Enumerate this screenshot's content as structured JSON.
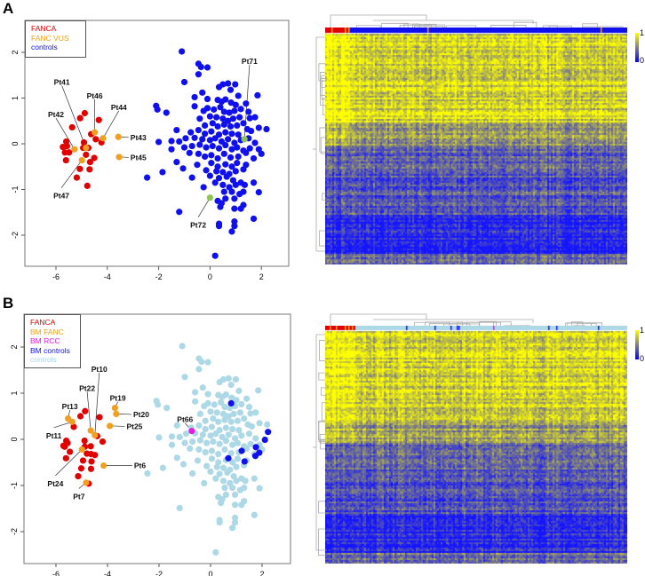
{
  "panels": {
    "a": "A",
    "b": "B"
  },
  "chart_data": [
    {
      "type": "scatter",
      "panel": "A",
      "xlim": [
        -7,
        3
      ],
      "ylim": [
        -2.6,
        2.6
      ],
      "xticks": [
        "-6",
        "-4",
        "-2",
        "0",
        "2"
      ],
      "xtick_values": [
        -6,
        -4,
        -2,
        0,
        2
      ],
      "yticks": [
        "-2",
        "-1",
        "0",
        "1",
        "2"
      ],
      "ytick_values": [
        -2,
        -1,
        0,
        1,
        2
      ],
      "legend_position": "top-left",
      "legend": [
        {
          "label": "FANCA",
          "color": "#e00000"
        },
        {
          "label": "FANC VUS",
          "color": "#f0a020"
        },
        {
          "label": "controls",
          "color": "#1010ee"
        }
      ],
      "series": [
        {
          "name": "FANCA",
          "color": "#e00000",
          "points": [
            [
              -4.88,
              0.67
            ],
            [
              -5.06,
              0.56
            ],
            [
              -5.37,
              0.36
            ],
            [
              -4.33,
              0.52
            ],
            [
              -4.63,
              0.21
            ],
            [
              -4.45,
              0.1
            ],
            [
              -5.6,
              0.05
            ],
            [
              -5.73,
              -0.07
            ],
            [
              -5.57,
              -0.05
            ],
            [
              -5.65,
              -0.19
            ],
            [
              -5.49,
              -0.19
            ],
            [
              -4.91,
              0.03
            ],
            [
              -4.94,
              -0.09
            ],
            [
              -4.74,
              -0.09
            ],
            [
              -4.83,
              -0.24
            ],
            [
              -4.51,
              -0.31
            ],
            [
              -5.61,
              -0.36
            ],
            [
              -4.67,
              -0.4
            ],
            [
              -5.07,
              -0.55
            ],
            [
              -4.69,
              -0.56
            ],
            [
              -5.19,
              -0.74
            ],
            [
              -4.78,
              -0.92
            ],
            [
              -4.23,
              0.03
            ]
          ]
        },
        {
          "name": "controls",
          "color": "#1010ee",
          "points": "controls"
        },
        {
          "name": "FANC VUS",
          "color": "#f0a020",
          "points": [
            [
              -4.49,
              0.25
            ],
            [
              -4.17,
              0.12
            ],
            [
              -3.57,
              0.15
            ],
            [
              -3.54,
              -0.29
            ],
            [
              -5.28,
              -0.12
            ],
            [
              -4.83,
              -0.09
            ],
            [
              -4.99,
              -0.36
            ]
          ]
        },
        {
          "name": "highlighted controls",
          "color": "#8cc850",
          "points": [
            [
              1.34,
              0.1
            ],
            [
              0.0,
              -1.18
            ]
          ]
        }
      ],
      "annotations": [
        {
          "text": "Pt41",
          "point": [
            -4.83,
            -0.09
          ],
          "label_at": [
            -5.77,
            1.35
          ]
        },
        {
          "text": "Pt46",
          "point": [
            -4.49,
            0.25
          ],
          "label_at": [
            -4.49,
            1.05
          ]
        },
        {
          "text": "Pt42",
          "point": [
            -5.28,
            -0.12
          ],
          "label_at": [
            -6.0,
            0.64
          ]
        },
        {
          "text": "Pt44",
          "point": [
            -4.17,
            0.12
          ],
          "label_at": [
            -3.55,
            0.8
          ]
        },
        {
          "text": "Pt43",
          "point": [
            -3.57,
            0.15
          ],
          "label_at": [
            -3.1,
            0.14
          ],
          "side": "right"
        },
        {
          "text": "Pt45",
          "point": [
            -3.54,
            -0.29
          ],
          "label_at": [
            -3.1,
            -0.3
          ],
          "side": "right"
        },
        {
          "text": "Pt47",
          "point": [
            -4.99,
            -0.36
          ],
          "label_at": [
            -5.79,
            -1.14
          ]
        },
        {
          "text": "Pt71",
          "point": [
            1.34,
            0.1
          ],
          "label_at": [
            1.54,
            1.81
          ]
        },
        {
          "text": "Pt72",
          "point": [
            0.0,
            -1.18
          ],
          "label_at": [
            -0.46,
            -1.78
          ]
        }
      ]
    },
    {
      "type": "scatter",
      "panel": "B",
      "xlim": [
        -7,
        3
      ],
      "ylim": [
        -2.6,
        2.6
      ],
      "xticks": [
        "-6",
        "-4",
        "-2",
        "0",
        "2"
      ],
      "xtick_values": [
        -6,
        -4,
        -2,
        0,
        2
      ],
      "yticks": [
        "-2",
        "-1",
        "0",
        "1",
        "2"
      ],
      "ytick_values": [
        -2,
        -1,
        0,
        1,
        2
      ],
      "legend_position": "top-left",
      "legend": [
        {
          "label": "FANCA",
          "color": "#e00000"
        },
        {
          "label": "BM FANC",
          "color": "#f0a020"
        },
        {
          "label": "BM RCC",
          "color": "#e020e0"
        },
        {
          "label": "BM controls",
          "color": "#1010ee"
        },
        {
          "label": "controls",
          "color": "#a8d4e4"
        }
      ],
      "series": [
        {
          "name": "controls",
          "color": "#add8e6",
          "points": "controls"
        },
        {
          "name": "FANCA",
          "color": "#e00000",
          "points": [
            [
              -4.87,
              0.61
            ],
            [
              -5.05,
              0.5
            ],
            [
              -4.31,
              0.48
            ],
            [
              -5.31,
              0.27
            ],
            [
              -4.4,
              0.07
            ],
            [
              -5.6,
              -0.03
            ],
            [
              -5.55,
              -0.08
            ],
            [
              -4.89,
              -0.03
            ],
            [
              -5.71,
              -0.14
            ],
            [
              -5.66,
              -0.16
            ],
            [
              -4.88,
              -0.16
            ],
            [
              -4.65,
              -0.15
            ],
            [
              -5.46,
              -0.27
            ],
            [
              -4.8,
              -0.31
            ],
            [
              -4.64,
              -0.32
            ],
            [
              -4.49,
              -0.34
            ],
            [
              -5.61,
              -0.41
            ],
            [
              -4.95,
              -0.46
            ],
            [
              -4.62,
              -0.48
            ],
            [
              -4.19,
              -0.05
            ],
            [
              -5.02,
              -0.63
            ],
            [
              -4.64,
              -0.64
            ],
            [
              -5.14,
              -0.8
            ],
            [
              -4.73,
              -0.96
            ]
          ]
        },
        {
          "name": "BM FANC",
          "color": "#f0a020",
          "points": [
            [
              -5.53,
              0.45
            ],
            [
              -5.37,
              0.38
            ],
            [
              -4.65,
              0.19
            ],
            [
              -4.49,
              0.09
            ],
            [
              -3.71,
              0.68
            ],
            [
              -3.66,
              0.55
            ],
            [
              -3.91,
              0.29
            ],
            [
              -4.15,
              -0.57
            ],
            [
              -4.99,
              -0.22
            ],
            [
              -4.83,
              -0.94
            ]
          ]
        },
        {
          "name": "BM RCC",
          "color": "#e020e0",
          "points": [
            [
              -0.73,
              0.18
            ]
          ]
        },
        {
          "name": "BM controls",
          "color": "#1010ee",
          "points": [
            [
              0.8,
              0.78
            ],
            [
              2.23,
              0.16
            ],
            [
              2.11,
              -0.01
            ],
            [
              1.76,
              -0.17
            ],
            [
              1.21,
              -0.25
            ],
            [
              1.89,
              -0.29
            ],
            [
              1.74,
              -0.36
            ],
            [
              0.69,
              -0.41
            ],
            [
              1.32,
              -0.48
            ]
          ]
        }
      ],
      "annotations": [
        {
          "text": "Pt10",
          "point": [
            -4.49,
            0.09
          ],
          "label_at": [
            -4.32,
            1.52
          ]
        },
        {
          "text": "Pt22",
          "point": [
            -4.65,
            0.19
          ],
          "label_at": [
            -4.79,
            1.11
          ]
        },
        {
          "text": "Pt19",
          "point": [
            -3.71,
            0.68
          ],
          "label_at": [
            -3.6,
            0.89
          ]
        },
        {
          "text": "Pt13",
          "point": [
            -5.53,
            0.45
          ],
          "label_at": [
            -5.46,
            0.71
          ]
        },
        {
          "text": "Pt20",
          "point": [
            -3.66,
            0.55
          ],
          "label_at": [
            -3.0,
            0.54
          ],
          "side": "right"
        },
        {
          "text": "Pt25",
          "point": [
            -3.91,
            0.29
          ],
          "label_at": [
            -3.26,
            0.28
          ],
          "side": "right"
        },
        {
          "text": "Pt11",
          "point": [
            -5.37,
            0.38
          ],
          "label_at": [
            -6.08,
            0.08
          ]
        },
        {
          "text": "Pt66",
          "point": [
            -0.73,
            0.18
          ],
          "label_at": [
            -0.99,
            0.43
          ]
        },
        {
          "text": "Pt6",
          "point": [
            -4.15,
            -0.57
          ],
          "label_at": [
            -2.97,
            -0.57
          ],
          "side": "right"
        },
        {
          "text": "Pt24",
          "point": [
            -4.99,
            -0.22
          ],
          "label_at": [
            -6.02,
            -0.96
          ]
        },
        {
          "text": "Pt7",
          "point": [
            -4.83,
            -0.94
          ],
          "label_at": [
            -5.11,
            -1.24
          ]
        }
      ]
    },
    {
      "type": "heatmap",
      "panel": "A",
      "colorbar": {
        "min_label": "0",
        "max_label": "1",
        "range": [
          0,
          1
        ],
        "low_color": "#0000ff",
        "mid_color": "#808080",
        "high_color": "#ffff00"
      },
      "column_annotation_colors": {
        "FANCA": "#e00000",
        "FANC VUS": "#f0a020",
        "controls": "#1010ee"
      }
    },
    {
      "type": "heatmap",
      "panel": "B",
      "colorbar": {
        "min_label": "0",
        "max_label": "1",
        "range": [
          0,
          1
        ],
        "low_color": "#0000ff",
        "mid_color": "#808080",
        "high_color": "#ffff00"
      },
      "column_annotation_colors": {
        "FANCA": "#e00000",
        "BM FANC": "#f0a020",
        "BM RCC": "#e020e0",
        "BM controls": "#1010ee",
        "controls": "#add8e6"
      }
    }
  ],
  "controls": [
    [
      -1.1,
      2.02
    ],
    [
      -0.45,
      1.75
    ],
    [
      -0.35,
      1.68
    ],
    [
      -0.1,
      1.67
    ],
    [
      -0.45,
      1.52
    ],
    [
      -1.0,
      1.35
    ],
    [
      0.5,
      1.3
    ],
    [
      0.7,
      1.32
    ],
    [
      0.35,
      1.24
    ],
    [
      0.8,
      1.18
    ],
    [
      0.98,
      1.3
    ],
    [
      1.1,
      1.05
    ],
    [
      1.85,
      1.06
    ],
    [
      -0.3,
      1.12
    ],
    [
      -0.6,
      1.02
    ],
    [
      -0.1,
      0.98
    ],
    [
      0.3,
      0.96
    ],
    [
      0.45,
      0.92
    ],
    [
      0.6,
      0.97
    ],
    [
      0.82,
      0.9
    ],
    [
      1.0,
      0.85
    ],
    [
      1.4,
      0.88
    ],
    [
      -2.1,
      0.83
    ],
    [
      -2.05,
      0.75
    ],
    [
      -1.7,
      0.68
    ],
    [
      -0.6,
      0.82
    ],
    [
      -0.25,
      0.72
    ],
    [
      -0.1,
      0.78
    ],
    [
      0.15,
      0.75
    ],
    [
      0.4,
      0.8
    ],
    [
      0.55,
      0.7
    ],
    [
      0.75,
      0.68
    ],
    [
      0.95,
      0.72
    ],
    [
      1.2,
      0.76
    ],
    [
      1.5,
      0.7
    ],
    [
      -0.4,
      0.55
    ],
    [
      0.0,
      0.6
    ],
    [
      0.25,
      0.58
    ],
    [
      0.5,
      0.55
    ],
    [
      0.7,
      0.5
    ],
    [
      0.9,
      0.55
    ],
    [
      1.15,
      0.58
    ],
    [
      1.55,
      0.56
    ],
    [
      1.75,
      0.58
    ],
    [
      -0.2,
      0.4
    ],
    [
      0.1,
      0.45
    ],
    [
      0.3,
      0.38
    ],
    [
      0.55,
      0.42
    ],
    [
      0.8,
      0.38
    ],
    [
      1.05,
      0.4
    ],
    [
      1.3,
      0.45
    ],
    [
      1.45,
      0.32
    ],
    [
      1.9,
      0.35
    ],
    [
      2.2,
      0.32
    ],
    [
      -1.3,
      0.3
    ],
    [
      -0.75,
      0.25
    ],
    [
      -0.45,
      0.3
    ],
    [
      -0.2,
      0.22
    ],
    [
      0.05,
      0.27
    ],
    [
      0.35,
      0.2
    ],
    [
      0.6,
      0.25
    ],
    [
      0.85,
      0.22
    ],
    [
      1.1,
      0.2
    ],
    [
      1.6,
      0.28
    ],
    [
      -1.5,
      0.06
    ],
    [
      -1.2,
      0.05
    ],
    [
      -0.95,
      0.12
    ],
    [
      -0.6,
      0.13
    ],
    [
      -0.3,
      0.1
    ],
    [
      0.0,
      0.08
    ],
    [
      0.2,
      0.12
    ],
    [
      0.45,
      0.05
    ],
    [
      0.7,
      0.1
    ],
    [
      0.95,
      0.02
    ],
    [
      1.2,
      0.08
    ],
    [
      1.5,
      0.12
    ],
    [
      1.75,
      0.02
    ],
    [
      -2.0,
      0.04
    ],
    [
      -1.0,
      -0.08
    ],
    [
      -0.7,
      -0.05
    ],
    [
      -0.4,
      -0.02
    ],
    [
      -0.15,
      -0.08
    ],
    [
      0.1,
      -0.05
    ],
    [
      0.35,
      -0.1
    ],
    [
      0.6,
      -0.03
    ],
    [
      0.85,
      -0.12
    ],
    [
      1.05,
      -0.08
    ],
    [
      1.3,
      -0.15
    ],
    [
      1.55,
      -0.1
    ],
    [
      1.9,
      -0.12
    ],
    [
      2.0,
      -0.22
    ],
    [
      -1.5,
      -0.12
    ],
    [
      -0.8,
      -0.2
    ],
    [
      -0.45,
      -0.22
    ],
    [
      -0.2,
      -0.28
    ],
    [
      0.05,
      -0.25
    ],
    [
      0.3,
      -0.32
    ],
    [
      0.55,
      -0.22
    ],
    [
      0.8,
      -0.3
    ],
    [
      1.1,
      -0.28
    ],
    [
      1.4,
      -0.2
    ],
    [
      1.7,
      -0.32
    ],
    [
      -1.3,
      -0.4
    ],
    [
      -0.5,
      -0.46
    ],
    [
      0.05,
      -0.42
    ],
    [
      0.3,
      -0.5
    ],
    [
      0.6,
      -0.45
    ],
    [
      0.85,
      -0.5
    ],
    [
      1.05,
      -0.42
    ],
    [
      1.4,
      -0.46
    ],
    [
      -1.05,
      -0.54
    ],
    [
      -1.85,
      -0.62
    ],
    [
      -0.15,
      -0.58
    ],
    [
      0.25,
      -0.6
    ],
    [
      0.5,
      -0.62
    ],
    [
      0.75,
      -0.66
    ],
    [
      1.0,
      -0.6
    ],
    [
      1.3,
      -0.56
    ],
    [
      -2.45,
      -0.74
    ],
    [
      -0.7,
      -0.74
    ],
    [
      0.0,
      -0.7
    ],
    [
      0.35,
      -0.75
    ],
    [
      0.65,
      -0.72
    ],
    [
      0.9,
      -0.8
    ],
    [
      1.2,
      -0.85
    ],
    [
      -0.25,
      -0.95
    ],
    [
      0.2,
      -0.85
    ],
    [
      0.5,
      -0.9
    ],
    [
      0.75,
      -0.95
    ],
    [
      1.0,
      -0.9
    ],
    [
      1.35,
      -0.9
    ],
    [
      1.7,
      -0.85
    ],
    [
      0.55,
      -1.05
    ],
    [
      0.85,
      -1.05
    ],
    [
      1.3,
      -1.05
    ],
    [
      1.9,
      -1.06
    ],
    [
      0.3,
      -1.25
    ],
    [
      0.6,
      -1.2
    ],
    [
      0.95,
      -1.2
    ],
    [
      1.15,
      -1.1
    ],
    [
      0.4,
      -1.38
    ],
    [
      0.45,
      -1.3
    ],
    [
      0.95,
      -1.42
    ],
    [
      1.2,
      -1.42
    ],
    [
      1.3,
      -1.34
    ],
    [
      -1.2,
      -1.49
    ],
    [
      0.35,
      -1.75
    ],
    [
      0.35,
      -1.8
    ],
    [
      0.95,
      -1.7
    ],
    [
      0.95,
      -1.8
    ],
    [
      1.7,
      -1.64
    ],
    [
      0.85,
      -1.92
    ],
    [
      0.2,
      -2.45
    ]
  ]
}
